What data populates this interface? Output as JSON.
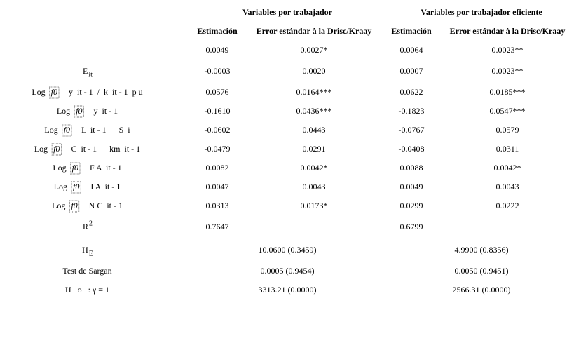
{
  "header": {
    "groups": [
      "Variables por trabajador",
      "Variables por trabajador eficiente"
    ],
    "columns": [
      "Estimación",
      "Error estándar à la Drisc/Kraay",
      "Estimación",
      "Error estándar à la Drisc/Kraay"
    ]
  },
  "table": {
    "rows": [
      {
        "values": [
          "0.0049",
          "0.0027*",
          "0.0064",
          "0.0023**"
        ]
      },
      {
        "label": {
          "text": "E",
          "sub": "it"
        },
        "values": [
          "-0.0003",
          "0.0020",
          "0.0007",
          "0.0023**"
        ]
      },
      {
        "label": {
          "prefix": "Log",
          "box": "f0",
          "text": "y  it - 1  /  k  it - 1  p u"
        },
        "values": [
          "0.0576",
          "0.0164***",
          "0.0622",
          "0.0185***"
        ]
      },
      {
        "label": {
          "prefix": "Log",
          "box": "f0",
          "text": "y  it - 1"
        },
        "values": [
          "-0.1610",
          "0.0436***",
          "-0.1823",
          "0.0547***"
        ]
      },
      {
        "label": {
          "prefix": "Log",
          "box": "f0",
          "text": "L  it - 1      S  i"
        },
        "values": [
          "-0.0602",
          "0.0443",
          "-0.0767",
          "0.0579"
        ]
      },
      {
        "label": {
          "prefix": "Log",
          "box": "f0",
          "text": "C  it - 1      km  it - 1"
        },
        "values": [
          "-0.0479",
          "0.0291",
          "-0.0408",
          "0.0311"
        ]
      },
      {
        "label": {
          "prefix": "Log",
          "box": "f0",
          "text": "F A  it - 1"
        },
        "values": [
          "0.0082",
          "0.0042*",
          "0.0088",
          "0.0042*"
        ]
      },
      {
        "label": {
          "prefix": "Log",
          "box": "f0",
          "text": "I A  it - 1"
        },
        "values": [
          "0.0047",
          "0.0043",
          "0.0049",
          "0.0043"
        ]
      },
      {
        "label": {
          "prefix": "Log",
          "box": "f0",
          "text": "N C  it - 1"
        },
        "values": [
          "0.0313",
          "0.0173*",
          "0.0299",
          "0.0222"
        ]
      },
      {
        "label": {
          "text": "R",
          "sup": "2"
        },
        "values": [
          "0.7647",
          "0.6799"
        ]
      }
    ],
    "stats": [
      {
        "label": {
          "text": "H",
          "sub": "E"
        },
        "values": [
          "10.0600 (0.3459)",
          "4.9900 (0.8356)"
        ]
      },
      {
        "label": {
          "text": "Test de Sargan"
        },
        "values": [
          "0.0005 (0.9454)",
          "0.0050 (0.9451)"
        ]
      },
      {
        "label": {
          "text": "H   o   : γ = 1"
        },
        "values": [
          "3313.21 (0.0000)",
          "2566.31 (0.0000)"
        ]
      }
    ]
  }
}
